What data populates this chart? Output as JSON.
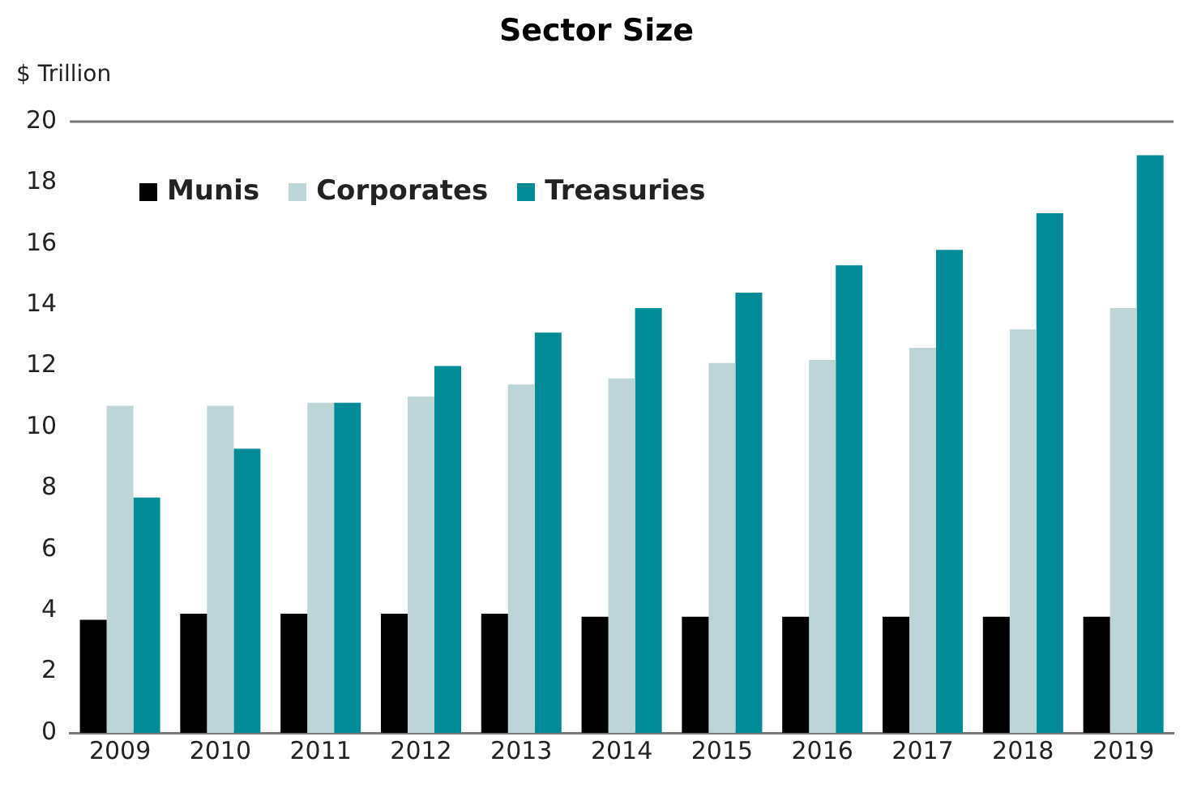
{
  "chart_data": {
    "type": "bar",
    "title": "Sector Size",
    "ylabel": "$ Trillion",
    "categories": [
      "2009",
      "2010",
      "2011",
      "2012",
      "2013",
      "2014",
      "2015",
      "2016",
      "2017",
      "2018",
      "2019"
    ],
    "series": [
      {
        "name": "Munis",
        "color": "#000000",
        "values": [
          3.7,
          3.9,
          3.9,
          3.9,
          3.9,
          3.8,
          3.8,
          3.8,
          3.8,
          3.8,
          3.8
        ]
      },
      {
        "name": "Corporates",
        "color": "#bdd5d7",
        "values": [
          10.7,
          10.7,
          10.8,
          11.0,
          11.4,
          11.6,
          12.1,
          12.2,
          12.6,
          13.2,
          13.9
        ]
      },
      {
        "name": "Treasuries",
        "color": "#008b96",
        "values": [
          7.7,
          9.3,
          10.8,
          12.0,
          13.1,
          13.9,
          14.4,
          15.3,
          15.8,
          17.0,
          18.9
        ]
      }
    ],
    "ylim": [
      0,
      20
    ],
    "yticks": [
      0,
      2,
      4,
      6,
      8,
      10,
      12,
      14,
      16,
      18,
      20
    ],
    "grid": false,
    "legend": "top left"
  }
}
